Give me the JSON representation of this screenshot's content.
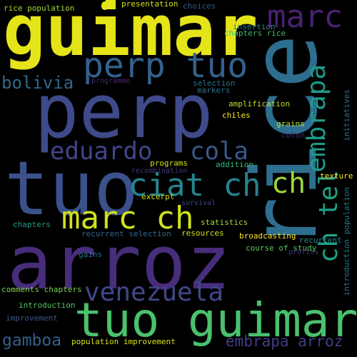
{
  "words": [
    {
      "id": "guimar",
      "text": "guimar",
      "color": "#e5e419"
    },
    {
      "id": "perp",
      "text": "perp",
      "color": "#3e4a89"
    },
    {
      "id": "tuo",
      "text": "tuo",
      "color": "#3b518b"
    },
    {
      "id": "arroz",
      "text": "arroz",
      "color": "#472d7b"
    },
    {
      "id": "rice",
      "text": "rice",
      "color": "#2e6e8e"
    },
    {
      "id": "tuo_guimar",
      "text": "tuo guimar",
      "color": "#4ac16d"
    },
    {
      "id": "perp_tuo",
      "text": "perp tuo",
      "color": "#34618d"
    },
    {
      "id": "marc_ch",
      "text": "marc ch",
      "color": "#d0e11c"
    },
    {
      "id": "marc",
      "text": "marc",
      "color": "#482173"
    },
    {
      "id": "eduardo",
      "text": "eduardo",
      "color": "#404688"
    },
    {
      "id": "cola",
      "text": "cola",
      "color": "#38598c"
    },
    {
      "id": "ciat_ch",
      "text": "ciat ch",
      "color": "#25858e"
    },
    {
      "id": "ch",
      "text": "ch",
      "color": "#9dd93b"
    },
    {
      "id": "venezuela",
      "text": "venezuela",
      "color": "#3f4889"
    },
    {
      "id": "embrapa",
      "text": "embrapa",
      "color": "#1f9a8a"
    },
    {
      "id": "ch_tel",
      "text": "ch tel",
      "color": "#1fa187"
    },
    {
      "id": "bolivia",
      "text": "bolivia",
      "color": "#31688e"
    },
    {
      "id": "gamboa",
      "text": "gamboa",
      "color": "#355f8d"
    },
    {
      "id": "embrapa_arroz",
      "text": "embrapa arroz",
      "color": "#433e85"
    },
    {
      "id": "rice_population",
      "text": "rice population",
      "color": "#a2da37"
    },
    {
      "id": "presentation",
      "text": "presentation",
      "color": "#d8e219"
    },
    {
      "id": "choices",
      "text": "choices",
      "color": "#38598c"
    },
    {
      "id": "insertion",
      "text": "insertion",
      "color": "#26828e"
    },
    {
      "id": "chapters_rice",
      "text": "chapters rice",
      "color": "#3dbc74"
    },
    {
      "id": "programme",
      "text": "programme",
      "color": "#482878"
    },
    {
      "id": "selection",
      "text": "selection",
      "color": "#2c728e"
    },
    {
      "id": "markers",
      "text": "markers",
      "color": "#2a788e"
    },
    {
      "id": "amplification",
      "text": "amplification",
      "color": "#c0df25"
    },
    {
      "id": "initiatives",
      "text": "initiatives",
      "color": "#2c728e"
    },
    {
      "id": "chiles",
      "text": "chiles",
      "color": "#fde725"
    },
    {
      "id": "grains",
      "text": "grains",
      "color": "#b5de2b"
    },
    {
      "id": "colon",
      "text": "colon",
      "color": "#482475"
    },
    {
      "id": "texture",
      "text": "texture",
      "color": "#fde725"
    },
    {
      "id": "programs",
      "text": "programs",
      "color": "#d8e219"
    },
    {
      "id": "addition",
      "text": "addition",
      "color": "#35b779"
    },
    {
      "id": "recombination",
      "text": "recombination",
      "color": "#443983"
    },
    {
      "id": "introduction_population",
      "text": "introduction population",
      "color": "#2a788e"
    },
    {
      "id": "excerpt",
      "text": "excerpt",
      "color": "#c8e020"
    },
    {
      "id": "survival",
      "text": "survival",
      "color": "#3e4989"
    },
    {
      "id": "chapters",
      "text": "chapters",
      "color": "#20a386"
    },
    {
      "id": "statistics",
      "text": "statistics",
      "color": "#a5db36"
    },
    {
      "id": "resources",
      "text": "resources",
      "color": "#d2e21b"
    },
    {
      "id": "recurrent_selection",
      "text": "recurrent selection",
      "color": "#31688e"
    },
    {
      "id": "broadcasting",
      "text": "broadcasting",
      "color": "#fde725"
    },
    {
      "id": "recurrent",
      "text": "recurrent",
      "color": "#23898e"
    },
    {
      "id": "course_of_study",
      "text": "course of study",
      "color": "#5ec962"
    },
    {
      "id": "profits",
      "text": "profits",
      "color": "#46337f"
    },
    {
      "id": "gains",
      "text": "gains",
      "color": "#2c728e"
    },
    {
      "id": "comments_chapters",
      "text": "comments chapters",
      "color": "#7ad151"
    },
    {
      "id": "introduction",
      "text": "introduction",
      "color": "#54c568"
    },
    {
      "id": "improvement",
      "text": "improvement",
      "color": "#39568c"
    },
    {
      "id": "population_improvement",
      "text": "population improvement",
      "color": "#d5e21a"
    }
  ]
}
